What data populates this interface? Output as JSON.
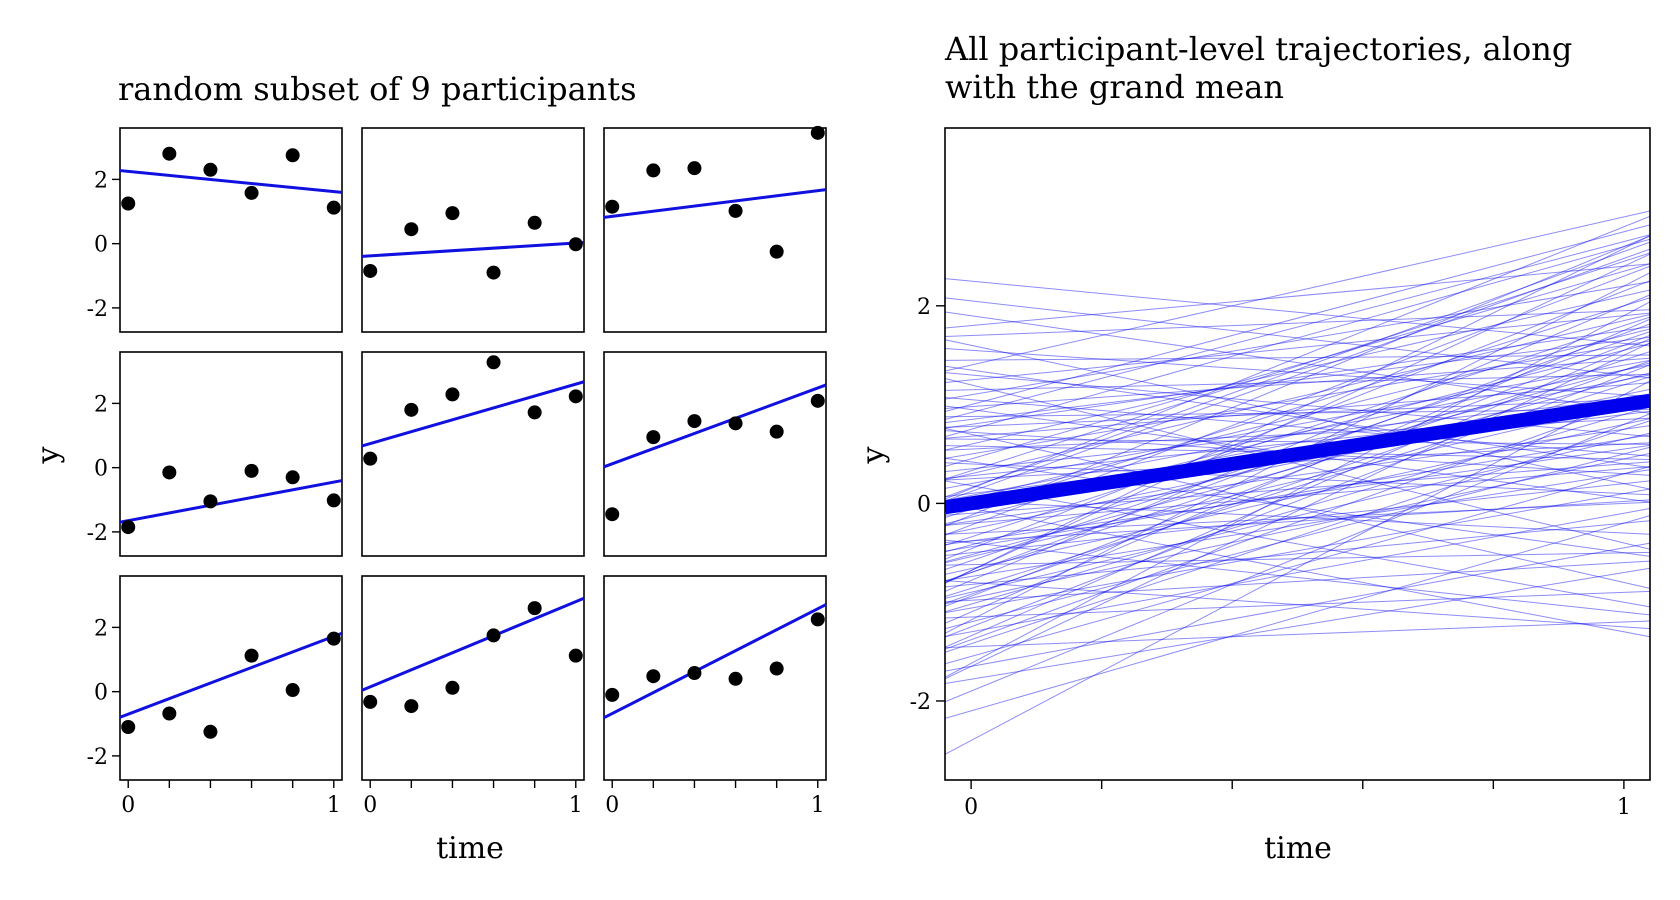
{
  "chart_data": [
    {
      "type": "scatter",
      "title": "random subset of 9 participants",
      "xlabel": "time",
      "ylabel": "y",
      "xlim": [
        -0.04,
        1.04
      ],
      "ylim": [
        -2.75,
        3.6
      ],
      "x_ticks": [
        0,
        0.2,
        0.4,
        0.6,
        0.8,
        1
      ],
      "x_tick_labels": [
        "0",
        "",
        "",
        "",
        "",
        "1"
      ],
      "y_ticks": [
        -2,
        0,
        2
      ],
      "y_tick_labels": [
        "-2",
        "0",
        "2"
      ],
      "point_color": "#000000",
      "line_color": "#1010e0",
      "panels": [
        {
          "points": [
            [
              0,
              1.25
            ],
            [
              0.2,
              2.8
            ],
            [
              0.4,
              2.3
            ],
            [
              0.6,
              1.58
            ],
            [
              0.8,
              2.75
            ],
            [
              1,
              1.12
            ]
          ],
          "line": [
            2.25,
            1.62
          ]
        },
        {
          "points": [
            [
              0,
              -0.85
            ],
            [
              0.2,
              0.45
            ],
            [
              0.4,
              0.95
            ],
            [
              0.6,
              -0.9
            ],
            [
              0.8,
              0.65
            ],
            [
              1,
              -0.02
            ]
          ],
          "line": [
            -0.38,
            0.02
          ]
        },
        {
          "points": [
            [
              0,
              1.15
            ],
            [
              0.2,
              2.28
            ],
            [
              0.4,
              2.35
            ],
            [
              0.6,
              1.02
            ],
            [
              0.8,
              -0.25
            ],
            [
              1,
              3.45
            ]
          ],
          "line": [
            0.85,
            1.65
          ]
        },
        {
          "points": [
            [
              0,
              -1.85
            ],
            [
              0.2,
              -0.15
            ],
            [
              0.4,
              -1.05
            ],
            [
              0.6,
              -0.1
            ],
            [
              0.8,
              -0.3
            ],
            [
              1,
              -1.02
            ]
          ],
          "line": [
            -1.65,
            -0.45
          ]
        },
        {
          "points": [
            [
              0,
              0.28
            ],
            [
              0.2,
              1.8
            ],
            [
              0.4,
              2.28
            ],
            [
              0.6,
              3.28
            ],
            [
              0.8,
              1.72
            ],
            [
              1,
              2.22
            ]
          ],
          "line": [
            0.75,
            2.6
          ]
        },
        {
          "points": [
            [
              0,
              -1.45
            ],
            [
              0.2,
              0.95
            ],
            [
              0.4,
              1.45
            ],
            [
              0.6,
              1.38
            ],
            [
              0.8,
              1.12
            ],
            [
              1,
              2.08
            ]
          ],
          "line": [
            0.12,
            2.48
          ]
        },
        {
          "points": [
            [
              0,
              -1.1
            ],
            [
              0.2,
              -0.68
            ],
            [
              0.4,
              -1.25
            ],
            [
              0.6,
              1.12
            ],
            [
              0.8,
              0.05
            ],
            [
              1,
              1.65
            ]
          ],
          "line": [
            -0.7,
            1.72
          ]
        },
        {
          "points": [
            [
              0,
              -0.32
            ],
            [
              0.2,
              -0.45
            ],
            [
              0.4,
              0.12
            ],
            [
              0.6,
              1.75
            ],
            [
              0.8,
              2.6
            ],
            [
              1,
              1.12
            ]
          ],
          "line": [
            0.15,
            2.8
          ]
        },
        {
          "points": [
            [
              0,
              -0.1
            ],
            [
              0.2,
              0.48
            ],
            [
              0.4,
              0.58
            ],
            [
              0.6,
              0.4
            ],
            [
              0.8,
              0.72
            ],
            [
              1,
              2.25
            ]
          ],
          "line": [
            -0.68,
            2.58
          ]
        }
      ]
    },
    {
      "type": "line",
      "title": "All participant-level trajectories, along with the grand mean",
      "xlabel": "time",
      "ylabel": "y",
      "xlim": [
        -0.04,
        1.04
      ],
      "ylim": [
        -2.8,
        3.8
      ],
      "x_ticks": [
        0,
        0.2,
        0.4,
        0.6,
        0.8,
        1
      ],
      "x_tick_labels": [
        "0",
        "",
        "",
        "",
        "",
        "1"
      ],
      "y_ticks": [
        -2,
        0,
        2
      ],
      "y_tick_labels": [
        "-2",
        "0",
        "2"
      ],
      "line_color": "#0000ee",
      "grand_mean": [
        0,
        1.0
      ],
      "trajectories": [
        [
          2.25,
          1.62
        ],
        [
          -0.38,
          0.02
        ],
        [
          0.85,
          1.65
        ],
        [
          -1.65,
          -0.45
        ],
        [
          0.75,
          2.6
        ],
        [
          0.12,
          2.48
        ],
        [
          -0.7,
          1.72
        ],
        [
          0.15,
          2.8
        ],
        [
          -0.68,
          2.58
        ],
        [
          2.05,
          1.3
        ],
        [
          1.8,
          2.4
        ],
        [
          1.55,
          1.1
        ],
        [
          1.4,
          2.9
        ],
        [
          1.3,
          0.7
        ],
        [
          1.25,
          1.9
        ],
        [
          1.1,
          2.2
        ],
        [
          1.05,
          0.5
        ],
        [
          0.98,
          1.45
        ],
        [
          0.92,
          2.65
        ],
        [
          0.88,
          0.95
        ],
        [
          0.8,
          1.75
        ],
        [
          0.72,
          0.3
        ],
        [
          0.68,
          1.2
        ],
        [
          0.6,
          2.1
        ],
        [
          0.55,
          0.85
        ],
        [
          0.5,
          1.6
        ],
        [
          0.45,
          2.35
        ],
        [
          0.4,
          0.1
        ],
        [
          0.35,
          1.05
        ],
        [
          0.3,
          1.85
        ],
        [
          0.25,
          0.6
        ],
        [
          0.2,
          1.4
        ],
        [
          0.16,
          2.55
        ],
        [
          0.1,
          0.9
        ],
        [
          0.05,
          1.7
        ],
        [
          0.02,
          -0.3
        ],
        [
          -0.02,
          1.25
        ],
        [
          -0.06,
          2.0
        ],
        [
          -0.1,
          0.4
        ],
        [
          -0.14,
          1.55
        ],
        [
          -0.18,
          0.75
        ],
        [
          -0.22,
          2.3
        ],
        [
          -0.26,
          1.1
        ],
        [
          -0.3,
          0.0
        ],
        [
          -0.34,
          1.8
        ],
        [
          -0.38,
          0.55
        ],
        [
          -0.42,
          1.35
        ],
        [
          -0.46,
          2.15
        ],
        [
          -0.5,
          0.2
        ],
        [
          -0.54,
          1.0
        ],
        [
          -0.58,
          1.65
        ],
        [
          -0.62,
          -0.5
        ],
        [
          -0.66,
          0.8
        ],
        [
          -0.7,
          1.45
        ],
        [
          -0.74,
          0.3
        ],
        [
          -0.78,
          2.0
        ],
        [
          -0.82,
          -0.2
        ],
        [
          -0.86,
          1.2
        ],
        [
          -0.9,
          0.65
        ],
        [
          -0.94,
          1.6
        ],
        [
          -0.98,
          -0.6
        ],
        [
          -1.02,
          0.9
        ],
        [
          -1.06,
          0.1
        ],
        [
          -1.1,
          1.75
        ],
        [
          -1.15,
          -0.9
        ],
        [
          -1.2,
          0.5
        ],
        [
          -1.25,
          1.3
        ],
        [
          -1.3,
          -0.1
        ],
        [
          -1.38,
          1.0
        ],
        [
          -1.45,
          -1.2
        ],
        [
          -1.55,
          0.3
        ],
        [
          -1.65,
          1.5
        ],
        [
          -1.78,
          -0.7
        ],
        [
          -1.9,
          0.8
        ],
        [
          -2.1,
          -0.2
        ],
        [
          -2.4,
          1.1
        ],
        [
          1.6,
          0.2
        ],
        [
          1.45,
          1.5
        ],
        [
          1.2,
          -0.4
        ],
        [
          0.95,
          0.05
        ],
        [
          0.7,
          -0.8
        ],
        [
          0.42,
          -0.5
        ],
        [
          0.18,
          -1.0
        ],
        [
          -0.05,
          -1.3
        ],
        [
          -0.4,
          -1.1
        ],
        [
          -0.8,
          -1.25
        ],
        [
          1.9,
          0.95
        ],
        [
          1.7,
          1.95
        ],
        [
          1.35,
          0.4
        ],
        [
          1.0,
          2.75
        ],
        [
          0.65,
          0.6
        ],
        [
          0.33,
          2.45
        ],
        [
          0.08,
          1.35
        ],
        [
          -0.12,
          2.6
        ],
        [
          -0.44,
          0.65
        ],
        [
          -0.68,
          2.4
        ],
        [
          -0.92,
          1.35
        ],
        [
          -1.18,
          2.2
        ],
        [
          -1.42,
          0.75
        ],
        [
          -1.62,
          1.9
        ],
        [
          0.78,
          1.05
        ],
        [
          0.58,
          0.45
        ],
        [
          0.28,
          0.95
        ],
        [
          -0.2,
          0.35
        ],
        [
          -0.52,
          1.25
        ],
        [
          -0.96,
          0.45
        ],
        [
          -1.34,
          1.55
        ],
        [
          1.15,
          1.3
        ]
      ]
    }
  ]
}
